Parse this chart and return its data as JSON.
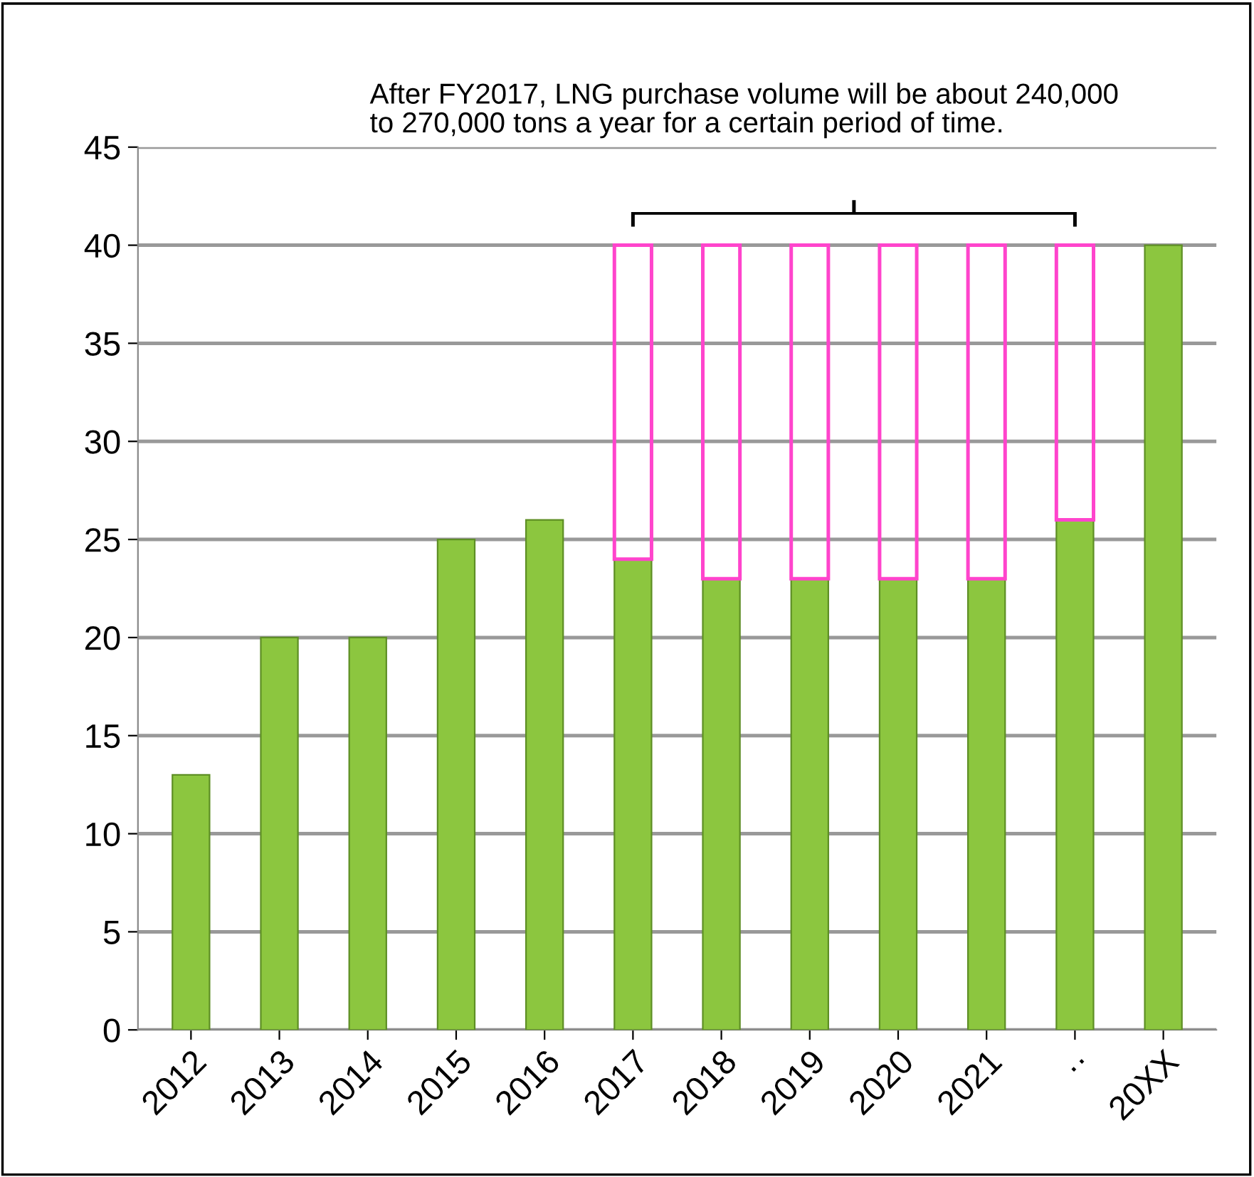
{
  "chart_data": {
    "type": "bar",
    "stacked": true,
    "categories": [
      "2012",
      "2013",
      "2014",
      "2015",
      "2016",
      "2017",
      "2018",
      "2019",
      "2020",
      "2021",
      "··",
      "20XX"
    ],
    "series": [
      {
        "color": "#8cc63f",
        "values": [
          13,
          20,
          20,
          25,
          26,
          24,
          23,
          23,
          23,
          23,
          26,
          40
        ]
      },
      {
        "color": "#ff44cc",
        "values": [
          null,
          null,
          null,
          null,
          null,
          16,
          17,
          17,
          17,
          17,
          14,
          null
        ]
      }
    ],
    "ylim": [
      0,
      45
    ],
    "yticks": [
      0,
      5,
      10,
      15,
      20,
      25,
      30,
      35,
      40,
      45
    ],
    "grid": "y",
    "annotations": [
      "After FY2017, LNG purchase volume will be about 240,000\nto 270,000 tons a year for a certain period of time."
    ]
  }
}
